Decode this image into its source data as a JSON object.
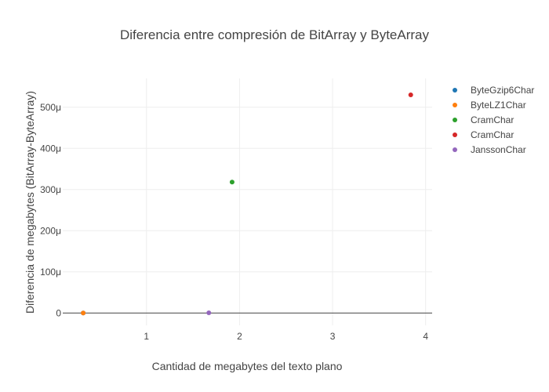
{
  "chart_data": {
    "type": "scatter",
    "title": "Diferencia entre compresión de BitArray y ByteArray",
    "xlabel": "Cantidad de megabytes del texto plano",
    "ylabel": "Diferencia de megabytes (BitArray-ByteArray)",
    "xlim": [
      0.1,
      4.07
    ],
    "ylim": [
      -3e-05,
      0.00057
    ],
    "x_ticks": [
      {
        "value": 1,
        "label": "1"
      },
      {
        "value": 2,
        "label": "2"
      },
      {
        "value": 3,
        "label": "3"
      },
      {
        "value": 4,
        "label": "4"
      }
    ],
    "y_ticks": [
      {
        "value": 0,
        "label": "0"
      },
      {
        "value": 0.0001,
        "label": "100μ"
      },
      {
        "value": 0.0002,
        "label": "200μ"
      },
      {
        "value": 0.0003,
        "label": "300μ"
      },
      {
        "value": 0.0004,
        "label": "400μ"
      },
      {
        "value": 0.0005,
        "label": "500μ"
      }
    ],
    "grid": true,
    "legend_position": "right",
    "series": [
      {
        "name": "ByteGzip6Char",
        "color": "#1f77b4",
        "points": [
          {
            "x": 0.32,
            "y": 0
          }
        ]
      },
      {
        "name": "ByteLZ1Char",
        "color": "#ff7f0e",
        "points": [
          {
            "x": 0.32,
            "y": 0
          }
        ]
      },
      {
        "name": "CramChar",
        "color": "#2ca02c",
        "points": [
          {
            "x": 1.92,
            "y": 0.000318
          }
        ]
      },
      {
        "name": "CramChar",
        "color": "#d62728",
        "points": [
          {
            "x": 3.84,
            "y": 0.00053
          }
        ]
      },
      {
        "name": "JanssonChar",
        "color": "#9467bd",
        "points": [
          {
            "x": 1.67,
            "y": 5e-07
          }
        ]
      }
    ]
  }
}
